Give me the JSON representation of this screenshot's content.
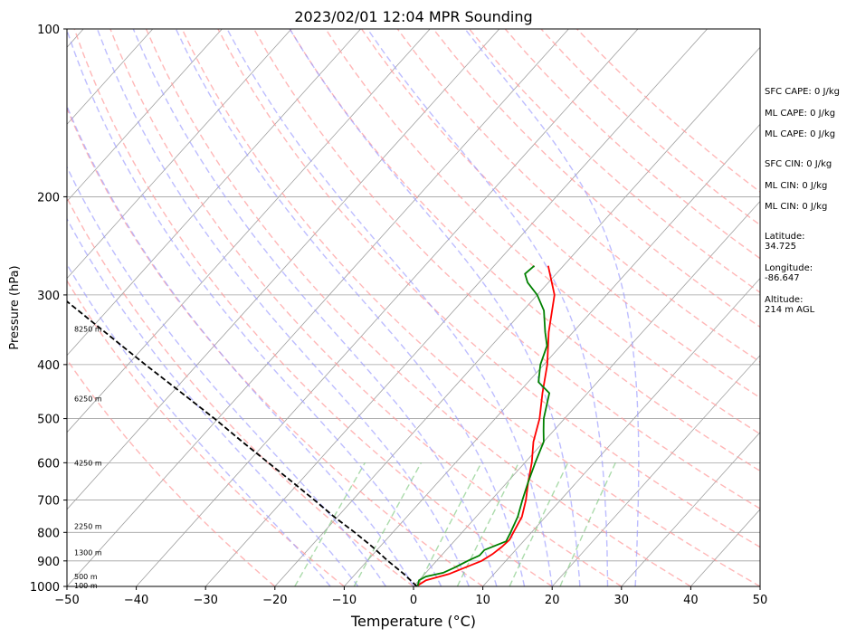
{
  "chart_data": {
    "type": "line",
    "title": "2023/02/01 12:04 MPR Sounding",
    "xlabel": "Temperature (°C)",
    "ylabel": "Pressure (hPa)",
    "xlim": [
      -50,
      50
    ],
    "ylim": [
      1000,
      100
    ],
    "y_scale": "log",
    "grid": true,
    "x_ticks": [
      "−50",
      "−40",
      "−30",
      "−20",
      "−10",
      "0",
      "10",
      "20",
      "30",
      "40",
      "50"
    ],
    "y_ticks": [
      "100",
      "200",
      "300",
      "400",
      "500",
      "600",
      "700",
      "800",
      "900",
      "1000"
    ],
    "height_labels": [
      {
        "p": 997,
        "text": "100 m"
      },
      {
        "p": 960,
        "text": "500 m"
      },
      {
        "p": 870,
        "text": "1300 m"
      },
      {
        "p": 780,
        "text": "2250 m"
      },
      {
        "p": 600,
        "text": "4250 m"
      },
      {
        "p": 460,
        "text": "6250 m"
      },
      {
        "p": 345,
        "text": "8250 m"
      }
    ],
    "series": [
      {
        "id": "temperature",
        "color": "#ff0000",
        "points": [
          {
            "p": 995,
            "t": 0.5
          },
          {
            "p": 975,
            "t": 1.0
          },
          {
            "p": 950,
            "t": 3.5
          },
          {
            "p": 925,
            "t": 5.0
          },
          {
            "p": 900,
            "t": 6.5
          },
          {
            "p": 875,
            "t": 7.2
          },
          {
            "p": 850,
            "t": 7.6
          },
          {
            "p": 825,
            "t": 7.8
          },
          {
            "p": 800,
            "t": 7.4
          },
          {
            "p": 775,
            "t": 7.0
          },
          {
            "p": 750,
            "t": 6.6
          },
          {
            "p": 700,
            "t": 5.0
          },
          {
            "p": 650,
            "t": 3.0
          },
          {
            "p": 600,
            "t": 1.0
          },
          {
            "p": 550,
            "t": -1.5
          },
          {
            "p": 500,
            "t": -3.6
          },
          {
            "p": 450,
            "t": -6.5
          },
          {
            "p": 400,
            "t": -9.5
          },
          {
            "p": 350,
            "t": -13.5
          },
          {
            "p": 300,
            "t": -17.5
          },
          {
            "p": 266,
            "t": -22.2
          }
        ]
      },
      {
        "id": "dewpoint",
        "color": "#008000",
        "points": [
          {
            "p": 997,
            "t": 0.5
          },
          {
            "p": 975,
            "t": 0.0
          },
          {
            "p": 960,
            "t": 0.5
          },
          {
            "p": 945,
            "t": 2.5
          },
          {
            "p": 925,
            "t": 3.5
          },
          {
            "p": 900,
            "t": 4.5
          },
          {
            "p": 880,
            "t": 5.5
          },
          {
            "p": 860,
            "t": 5.5
          },
          {
            "p": 845,
            "t": 6.5
          },
          {
            "p": 830,
            "t": 7.5
          },
          {
            "p": 800,
            "t": 7.0
          },
          {
            "p": 750,
            "t": 6.0
          },
          {
            "p": 700,
            "t": 4.5
          },
          {
            "p": 650,
            "t": 3.0
          },
          {
            "p": 600,
            "t": 1.5
          },
          {
            "p": 550,
            "t": 0.0
          },
          {
            "p": 525,
            "t": -1.5
          },
          {
            "p": 500,
            "t": -3.0
          },
          {
            "p": 450,
            "t": -5.5
          },
          {
            "p": 430,
            "t": -8.5
          },
          {
            "p": 400,
            "t": -10.5
          },
          {
            "p": 370,
            "t": -12.0
          },
          {
            "p": 350,
            "t": -14.0
          },
          {
            "p": 320,
            "t": -17.0
          },
          {
            "p": 300,
            "t": -20.0
          },
          {
            "p": 285,
            "t": -23.0
          },
          {
            "p": 275,
            "t": -24.5
          },
          {
            "p": 266,
            "t": -24.2
          }
        ]
      },
      {
        "id": "parcel",
        "color": "#000000",
        "dashed": true,
        "points": [
          {
            "p": 1000,
            "t": 0.5
          },
          {
            "p": 950,
            "t": -3.0
          },
          {
            "p": 900,
            "t": -7.0
          },
          {
            "p": 850,
            "t": -11.0
          },
          {
            "p": 800,
            "t": -15.5
          },
          {
            "p": 750,
            "t": -20.5
          },
          {
            "p": 700,
            "t": -25.5
          },
          {
            "p": 650,
            "t": -31.0
          },
          {
            "p": 600,
            "t": -37.0
          },
          {
            "p": 550,
            "t": -43.5
          },
          {
            "p": 500,
            "t": -50.5
          },
          {
            "p": 450,
            "t": -58.5
          },
          {
            "p": 400,
            "t": -67.5
          },
          {
            "p": 350,
            "t": -77.5
          },
          {
            "p": 300,
            "t": -89.0
          },
          {
            "p": 275,
            "t": -95.0
          }
        ]
      }
    ],
    "dry_adiabat_thetas_c": [
      -20,
      -10,
      0,
      10,
      20,
      30,
      40,
      50,
      60,
      70,
      80,
      90,
      100,
      110,
      120,
      130,
      140,
      150,
      160
    ],
    "moist_adiabat_start_c": [
      -12,
      -8,
      -4,
      0,
      4,
      8,
      12,
      16,
      20,
      24,
      28,
      32
    ],
    "mixing_ratios_gkg": [
      1,
      2,
      4,
      6,
      10,
      16
    ],
    "colors": {
      "temperature": "#ff0000",
      "dewpoint": "#008000",
      "parcel": "#000000",
      "isotherm": "#a0a0a0",
      "dry_adiabat": "#ff9999",
      "moist_adiabat": "#9999ff",
      "mixing_ratio": "#88cc88"
    }
  },
  "indices": {
    "sfc_cape": "SFC CAPE: 0 J/kg",
    "ml_cape_1": "ML CAPE: 0 J/kg",
    "ml_cape_2": "ML CAPE: 0 J/kg",
    "sfc_cin": "SFC CIN: 0 J/kg",
    "ml_cin_1": "ML CIN: 0 J/kg",
    "ml_cin_2": "ML CIN: 0 J/kg"
  },
  "location": {
    "lat_label": "Latitude:",
    "lat_value": "34.725",
    "lon_label": "Longitude:",
    "lon_value": "-86.647",
    "alt_label": "Altitude:",
    "alt_value": "214 m AGL"
  }
}
